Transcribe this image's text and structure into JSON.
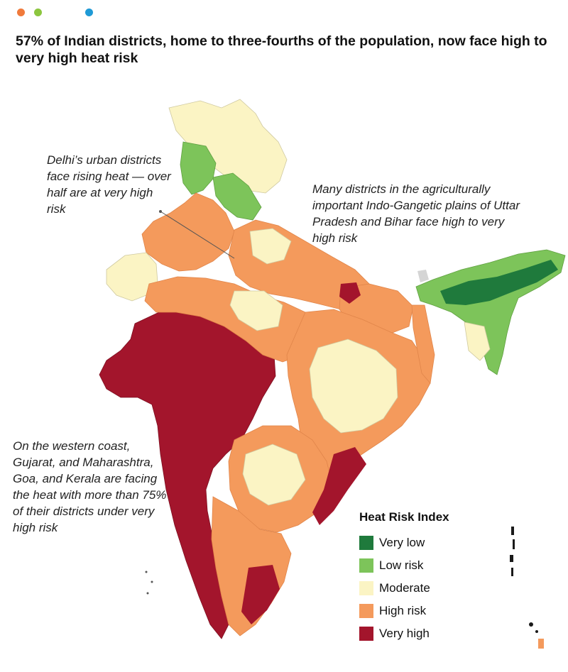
{
  "dots": [
    {
      "name": "orange-dot",
      "color": "#f07a3b"
    },
    {
      "name": "green-dot",
      "color": "#8cc63f"
    },
    {
      "name": "blue-dot",
      "color": "#1f9ad6"
    }
  ],
  "title": "57% of Indian districts, home to three-fourths of the population, now face high to very high heat risk",
  "annotations": {
    "delhi": "Delhi’s urban districts face rising heat — over half are at very high risk",
    "gangetic": "Many districts in the agriculturally important Indo-Gangetic plains of Uttar Pradesh and Bihar face high to very high risk",
    "west": "On the western coast, Gujarat, and Maharashtra, Goa, and Kerala are facing the heat with more than 75% of their districts under very high risk"
  },
  "legend": {
    "title": "Heat Risk Index",
    "items": [
      {
        "label": "Very low",
        "color": "#1f7a3c"
      },
      {
        "label": "Low risk",
        "color": "#7dc45a"
      },
      {
        "label": "Moderate",
        "color": "#fbf4c4"
      },
      {
        "label": "High risk",
        "color": "#f49a5c"
      },
      {
        "label": "Very high",
        "color": "#a3152c"
      }
    ]
  },
  "colors": {
    "very_low": "#1f7a3c",
    "low": "#7dc45a",
    "moderate": "#fbf4c4",
    "high": "#f49a5c",
    "very_high": "#a3152c",
    "no_data": "#d5d5d5"
  }
}
